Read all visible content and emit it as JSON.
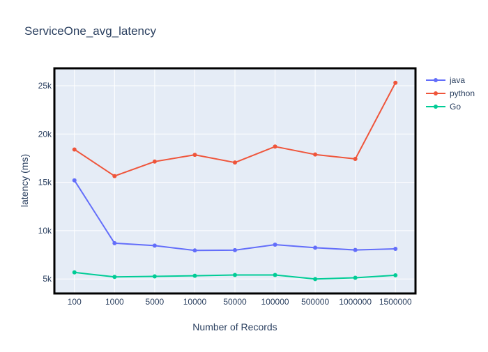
{
  "chart_data": {
    "type": "line",
    "title": "ServiceOne_avg_latency",
    "xlabel": "Number of Records",
    "ylabel": "latency (ms)",
    "categories": [
      "100",
      "1000",
      "5000",
      "10000",
      "50000",
      "100000",
      "500000",
      "1000000",
      "1500000"
    ],
    "ylim": [
      3500,
      26800
    ],
    "yticks": [
      5000,
      10000,
      15000,
      20000,
      25000
    ],
    "ytick_labels": [
      "5k",
      "10k",
      "15k",
      "20k",
      "25k"
    ],
    "grid": true,
    "legend_position": "top-right",
    "series": [
      {
        "name": "java",
        "color": "#636efa",
        "values": [
          15200,
          8700,
          8450,
          7950,
          7980,
          8550,
          8230,
          8000,
          8120
        ]
      },
      {
        "name": "python",
        "color": "#ef553b",
        "values": [
          18400,
          15650,
          17150,
          17850,
          17050,
          18700,
          17880,
          17420,
          25300
        ]
      },
      {
        "name": "Go",
        "color": "#00cc96",
        "values": [
          5680,
          5210,
          5270,
          5330,
          5410,
          5410,
          4990,
          5120,
          5380
        ]
      }
    ]
  }
}
